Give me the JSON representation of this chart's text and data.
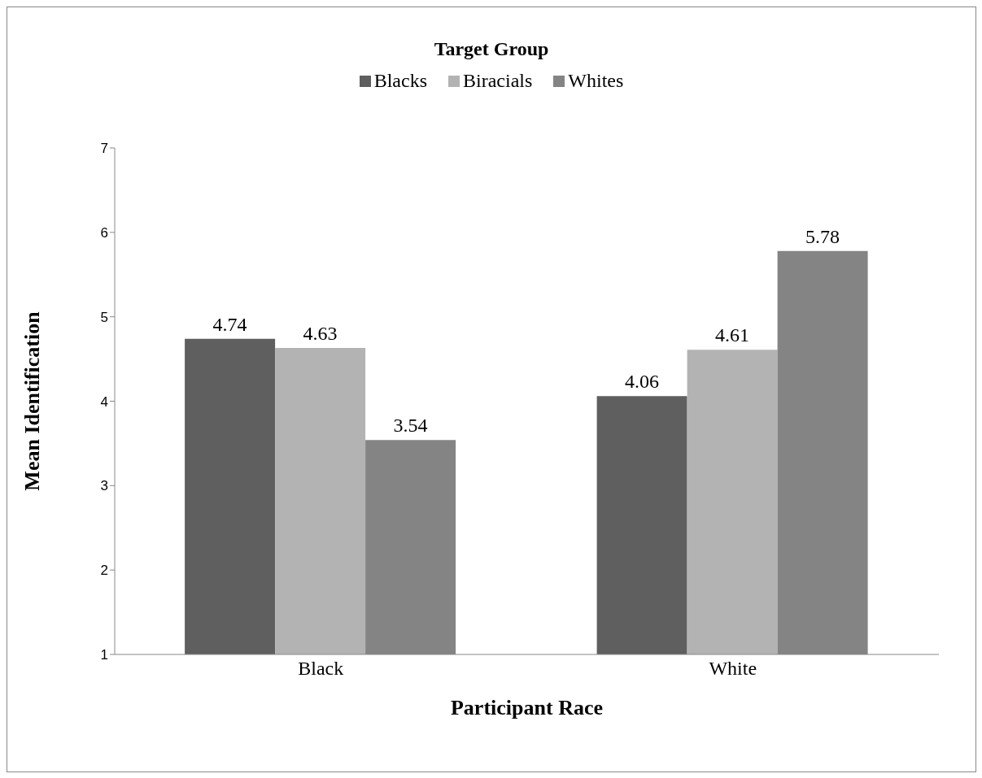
{
  "chart_data": {
    "type": "bar",
    "xlabel": "Participant Race",
    "ylabel": "Mean Identification",
    "legend_title": "Target Group",
    "categories": [
      "Black",
      "White"
    ],
    "series": [
      {
        "name": "Blacks",
        "color": "#5f5f5f",
        "values": [
          4.74,
          4.06
        ]
      },
      {
        "name": "Biracials",
        "color": "#b3b3b3",
        "values": [
          4.63,
          4.61
        ]
      },
      {
        "name": "Whites",
        "color": "#848484",
        "values": [
          3.54,
          5.78
        ]
      }
    ],
    "ylim": [
      1,
      7
    ],
    "yticks": [
      1,
      2,
      3,
      4,
      5,
      6,
      7
    ],
    "grid": false,
    "legend": "top",
    "data_labels": true
  }
}
